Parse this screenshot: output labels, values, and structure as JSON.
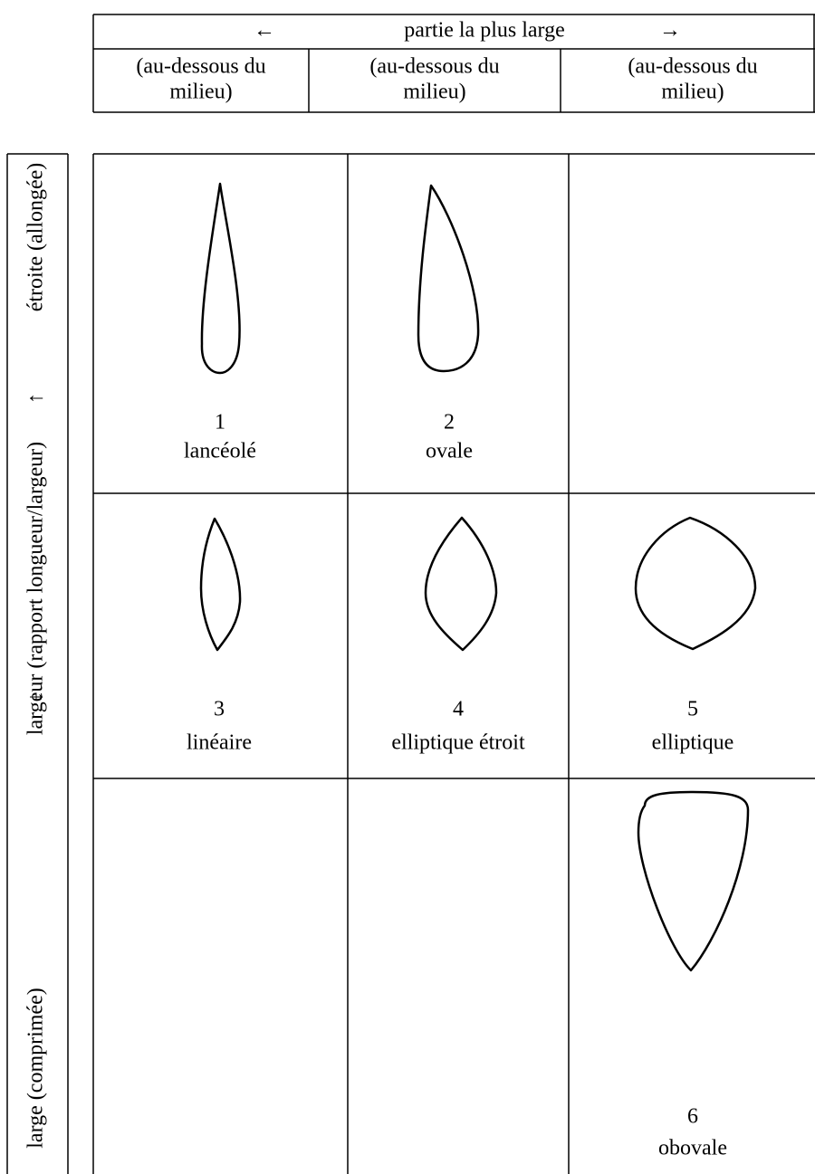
{
  "header": {
    "arrow_left": "←",
    "title": "partie la plus large",
    "arrow_right": "→",
    "columns": [
      [
        "(au-dessous du",
        "milieu)"
      ],
      [
        "(au-dessous du",
        "milieu)"
      ],
      [
        "(au-dessous du",
        "milieu)"
      ]
    ]
  },
  "side": {
    "top": "étroite (allongée)",
    "arrow_up": "↑",
    "middle": "largeur (rapport longueur/largeur)",
    "arrow_down": "↓",
    "bottom": "large (comprimée)"
  },
  "cells": [
    {
      "number": "1",
      "name": "lancéolé"
    },
    {
      "number": "2",
      "name": "ovale"
    },
    {
      "number": "3",
      "name": "linéaire"
    },
    {
      "number": "4",
      "name": "elliptique étroit"
    },
    {
      "number": "5",
      "name": "elliptique"
    },
    {
      "number": "6",
      "name": "obovale"
    }
  ]
}
